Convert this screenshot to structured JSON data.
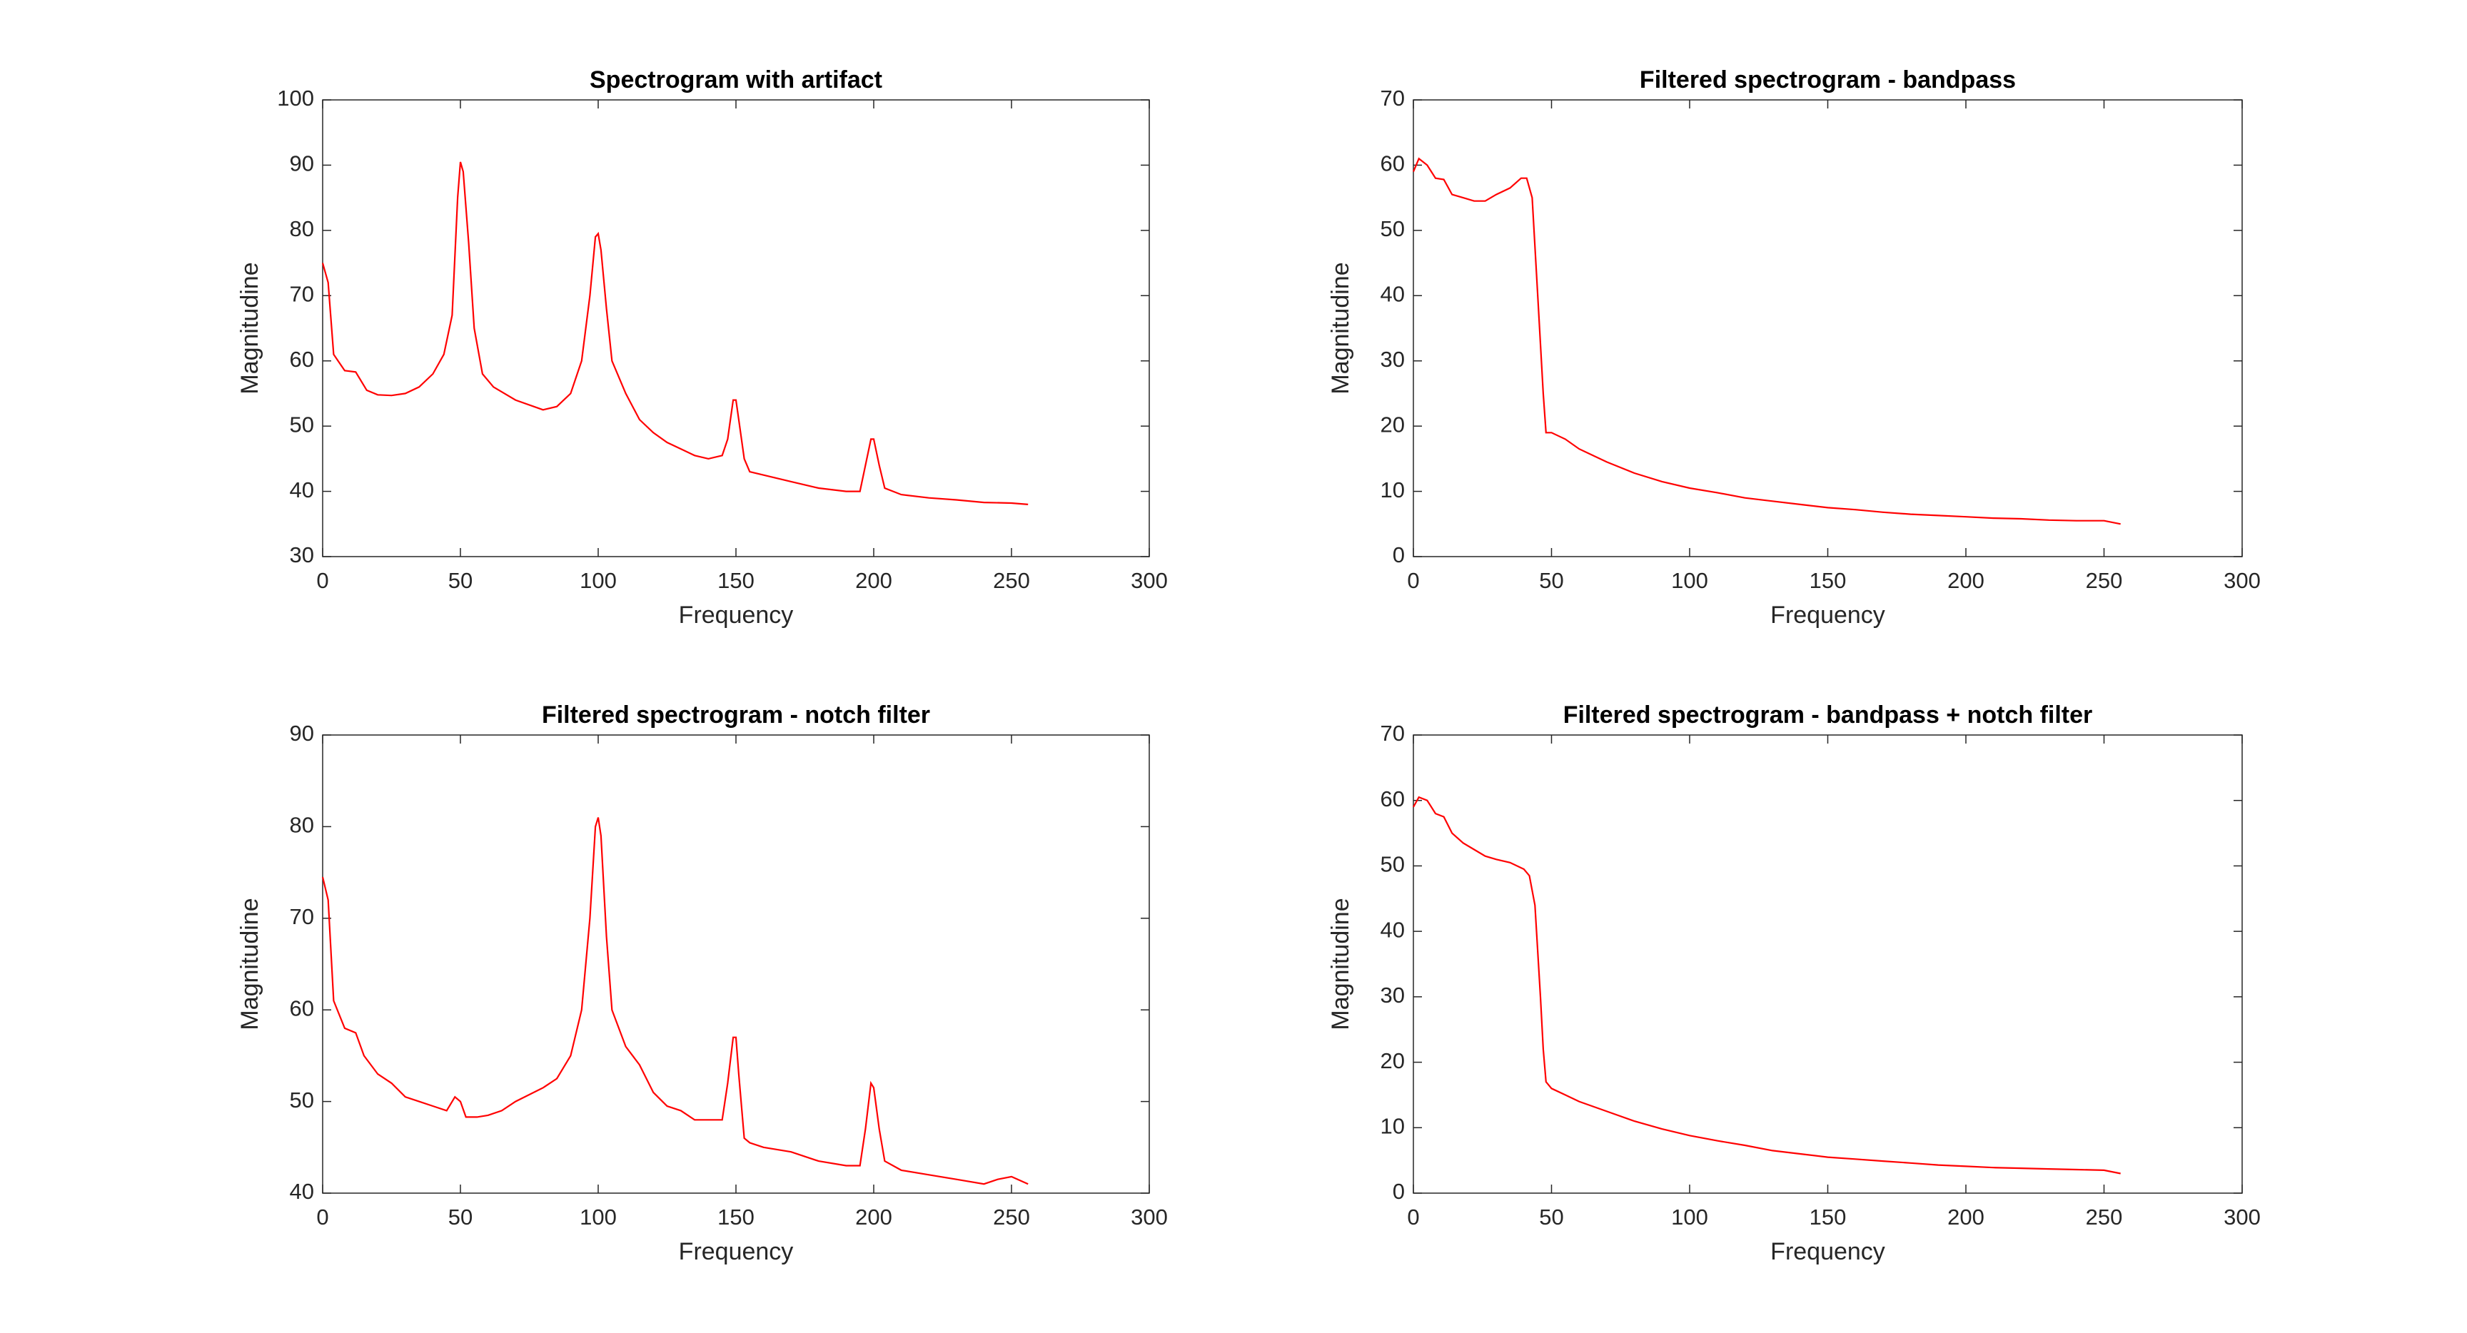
{
  "chart_data": [
    {
      "type": "line",
      "title": "Spectrogram with artifact",
      "xlabel": "Frequency",
      "ylabel": "Magnitudine",
      "color": "#ff0000",
      "xlim": [
        0,
        300
      ],
      "xticks": [
        0,
        50,
        100,
        150,
        200,
        250,
        300
      ],
      "ylim": [
        30,
        100
      ],
      "yticks": [
        30,
        40,
        50,
        60,
        70,
        80,
        90,
        100
      ],
      "x": [
        0,
        2,
        4,
        8,
        12,
        16,
        20,
        25,
        30,
        35,
        40,
        44,
        47,
        49,
        50,
        51,
        53,
        55,
        58,
        62,
        70,
        80,
        85,
        90,
        94,
        97,
        99,
        100,
        101,
        103,
        105,
        110,
        115,
        120,
        125,
        130,
        135,
        140,
        145,
        147,
        149,
        150,
        151,
        153,
        155,
        160,
        170,
        180,
        190,
        195,
        197,
        199,
        200,
        202,
        204,
        210,
        220,
        230,
        240,
        250,
        256
      ],
      "values": [
        75,
        72,
        61,
        58.5,
        58.3,
        55.5,
        54.8,
        54.7,
        55,
        56,
        58,
        61,
        67,
        85,
        90.5,
        89,
        78,
        65,
        58,
        56,
        54,
        52.5,
        53,
        55,
        60,
        70,
        79,
        79.5,
        77,
        68,
        60,
        55,
        51,
        49,
        47.5,
        46.5,
        45.5,
        45,
        45.5,
        48,
        54,
        54,
        51,
        45,
        43,
        42.5,
        41.5,
        40.5,
        40,
        40,
        44,
        48,
        48,
        44,
        40.5,
        39.5,
        39,
        38.7,
        38.3,
        38.2,
        38
      ]
    },
    {
      "type": "line",
      "title": "Filtered spectrogram - bandpass",
      "xlabel": "Frequency",
      "ylabel": "Magnitudine",
      "color": "#ff0000",
      "xlim": [
        0,
        300
      ],
      "xticks": [
        0,
        50,
        100,
        150,
        200,
        250,
        300
      ],
      "ylim": [
        0,
        70
      ],
      "yticks": [
        0,
        10,
        20,
        30,
        40,
        50,
        60,
        70
      ],
      "x": [
        0,
        2,
        5,
        8,
        11,
        14,
        18,
        22,
        26,
        30,
        35,
        39,
        41,
        43,
        45,
        47,
        48,
        50,
        55,
        60,
        70,
        80,
        90,
        100,
        110,
        120,
        130,
        140,
        150,
        160,
        170,
        180,
        190,
        200,
        210,
        220,
        230,
        240,
        250,
        256
      ],
      "values": [
        59,
        61,
        60,
        58,
        57.8,
        55.5,
        55,
        54.5,
        54.5,
        55.5,
        56.5,
        58,
        58,
        55,
        40,
        25,
        19,
        19,
        18,
        16.5,
        14.5,
        12.8,
        11.5,
        10.5,
        9.8,
        9,
        8.5,
        8,
        7.5,
        7.2,
        6.8,
        6.5,
        6.3,
        6.1,
        5.9,
        5.8,
        5.6,
        5.5,
        5.5,
        5
      ]
    },
    {
      "type": "line",
      "title": "Filtered spectrogram - notch filter",
      "xlabel": "Frequency",
      "ylabel": "Magnitudine",
      "color": "#ff0000",
      "xlim": [
        0,
        300
      ],
      "xticks": [
        0,
        50,
        100,
        150,
        200,
        250,
        300
      ],
      "ylim": [
        40,
        90
      ],
      "yticks": [
        40,
        50,
        60,
        70,
        80,
        90
      ],
      "x": [
        0,
        2,
        4,
        8,
        12,
        15,
        20,
        25,
        30,
        35,
        40,
        45,
        48,
        50,
        52,
        56,
        60,
        65,
        70,
        80,
        85,
        90,
        94,
        97,
        99,
        100,
        101,
        103,
        105,
        110,
        115,
        120,
        125,
        130,
        135,
        140,
        145,
        147,
        149,
        150,
        151,
        153,
        155,
        160,
        170,
        180,
        190,
        195,
        197,
        199,
        200,
        202,
        204,
        210,
        220,
        230,
        240,
        245,
        250,
        256
      ],
      "values": [
        74.5,
        72,
        61,
        58,
        57.5,
        55,
        53,
        52,
        50.5,
        50,
        49.5,
        49,
        50.5,
        50,
        48.3,
        48.3,
        48.5,
        49,
        50,
        51.5,
        52.5,
        55,
        60,
        70,
        80,
        81,
        79,
        68,
        60,
        56,
        54,
        51,
        49.5,
        49,
        48,
        48,
        48,
        52,
        57,
        57,
        53,
        46,
        45.5,
        45,
        44.5,
        43.5,
        43,
        43,
        47,
        52,
        51.5,
        47,
        43.5,
        42.5,
        42,
        41.5,
        41,
        41.5,
        41.8,
        41
      ]
    },
    {
      "type": "line",
      "title": "Filtered spectrogram - bandpass + notch filter",
      "xlabel": "Frequency",
      "ylabel": "Magnitudine",
      "color": "#ff0000",
      "xlim": [
        0,
        300
      ],
      "xticks": [
        0,
        50,
        100,
        150,
        200,
        250,
        300
      ],
      "ylim": [
        0,
        70
      ],
      "yticks": [
        0,
        10,
        20,
        30,
        40,
        50,
        60,
        70
      ],
      "x": [
        0,
        2,
        5,
        8,
        11,
        14,
        18,
        22,
        26,
        30,
        35,
        40,
        42,
        44,
        46,
        47,
        48,
        50,
        55,
        60,
        70,
        80,
        90,
        100,
        110,
        120,
        130,
        140,
        150,
        160,
        170,
        180,
        190,
        200,
        210,
        220,
        230,
        240,
        250,
        256
      ],
      "values": [
        59,
        60.5,
        60,
        58,
        57.5,
        55,
        53.5,
        52.5,
        51.5,
        51,
        50.5,
        49.5,
        48.5,
        44,
        30,
        22,
        17,
        16,
        15,
        14,
        12.5,
        11,
        9.8,
        8.8,
        8,
        7.3,
        6.5,
        6,
        5.5,
        5.2,
        4.9,
        4.6,
        4.3,
        4.1,
        3.9,
        3.8,
        3.7,
        3.6,
        3.5,
        3
      ]
    }
  ]
}
